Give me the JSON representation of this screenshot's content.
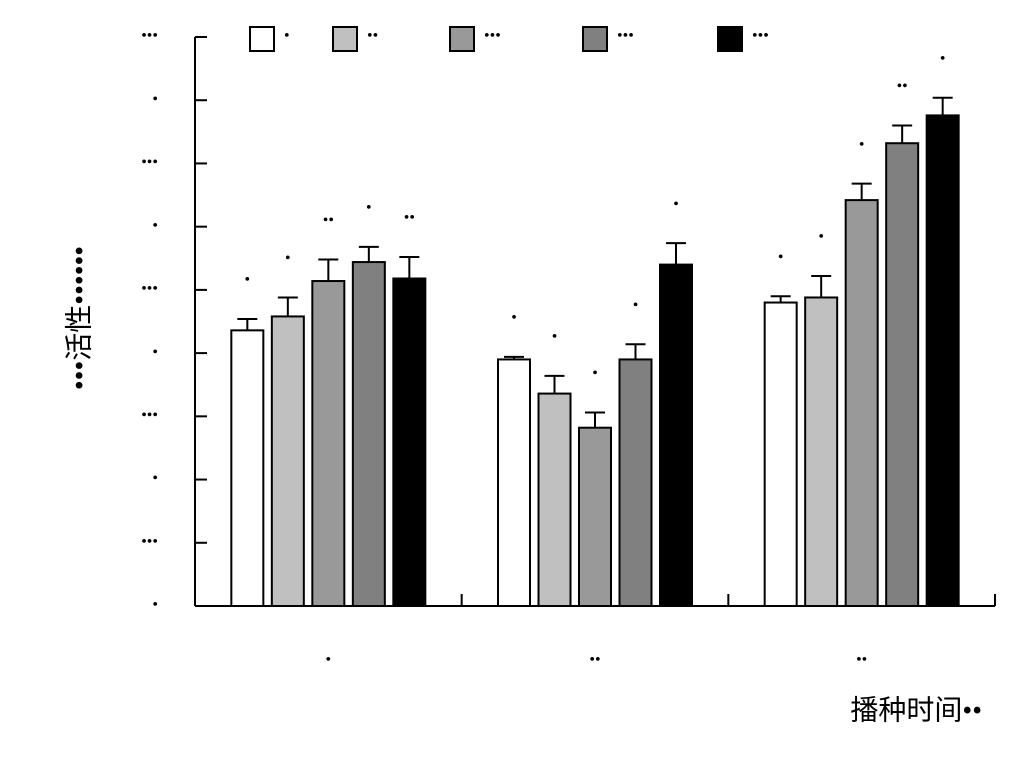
{
  "chart_data": {
    "type": "bar",
    "ylabel": "•••活性••••••",
    "xlabel": "播种时间••",
    "categories": [
      "•",
      "••",
      "••"
    ],
    "series": [
      {
        "name": "•",
        "color": "#ffffff",
        "values": [
          2.18,
          1.95,
          2.4
        ],
        "errors": [
          0.09,
          0.02,
          0.05
        ],
        "labels": [
          "•",
          "•",
          "•"
        ]
      },
      {
        "name": "••",
        "color": "#c0c0c0",
        "values": [
          2.29,
          1.68,
          2.44
        ],
        "errors": [
          0.15,
          0.14,
          0.17
        ],
        "labels": [
          "•",
          "•",
          "•"
        ]
      },
      {
        "name": "•••",
        "color": "#999999",
        "values": [
          2.57,
          1.41,
          3.21
        ],
        "errors": [
          0.17,
          0.12,
          0.13
        ],
        "labels": [
          "••",
          "•",
          "•"
        ]
      },
      {
        "name": "•••",
        "color": "#808080",
        "values": [
          2.72,
          1.95,
          3.66
        ],
        "errors": [
          0.12,
          0.12,
          0.14
        ],
        "labels": [
          "•",
          "•",
          "••"
        ]
      },
      {
        "name": "•••",
        "color": "#000000",
        "values": [
          2.59,
          2.7,
          3.88
        ],
        "errors": [
          0.17,
          0.17,
          0.14
        ],
        "labels": [
          "••",
          "•",
          "•"
        ]
      }
    ],
    "ylim": [
      0,
      4.5
    ],
    "yticks": [
      {
        "value": 0,
        "label": "•"
      },
      {
        "value": 0.5,
        "label": "•••"
      },
      {
        "value": 1,
        "label": "•"
      },
      {
        "value": 1.5,
        "label": "•••"
      },
      {
        "value": 2,
        "label": "•"
      },
      {
        "value": 2.5,
        "label": "•••"
      },
      {
        "value": 3,
        "label": "•"
      },
      {
        "value": 3.5,
        "label": "•••"
      },
      {
        "value": 4,
        "label": "•"
      },
      {
        "value": 4.5,
        "label": "•••"
      }
    ]
  }
}
